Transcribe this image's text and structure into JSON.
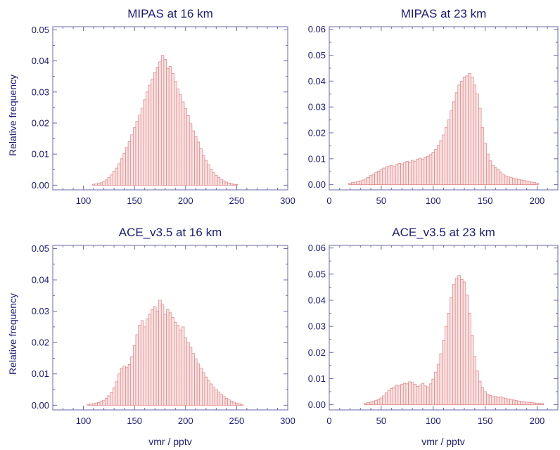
{
  "colors": {
    "text": "#1a1a7a",
    "axis": "#6a6aaa",
    "bar_fill": "#fbe3e3",
    "bar_edge": "#e07f7f"
  },
  "shared_labels": {
    "ylabel": "Relative  frequency",
    "xlabel": "vmr / pptv"
  },
  "chart_data": [
    {
      "type": "bar",
      "title": "MIPAS at 16 km",
      "xlim": [
        70,
        300
      ],
      "ylim": [
        -0.0015,
        0.051
      ],
      "xticks": [
        100,
        150,
        200,
        250,
        300
      ],
      "yticks": [
        0.0,
        0.01,
        0.02,
        0.03,
        0.04,
        0.05
      ],
      "yticks_labels": [
        "0.00",
        "0.01",
        "0.02",
        "0.03",
        "0.04",
        "0.05"
      ],
      "bin_width": 2.5,
      "x": [
        110.0,
        112.5,
        115.0,
        117.5,
        120.0,
        122.5,
        125.0,
        127.5,
        130.0,
        132.5,
        135.0,
        137.5,
        140.0,
        142.5,
        145.0,
        147.5,
        150.0,
        152.5,
        155.0,
        157.5,
        160.0,
        162.5,
        165.0,
        167.5,
        170.0,
        172.5,
        175.0,
        177.5,
        180.0,
        182.5,
        185.0,
        187.5,
        190.0,
        192.5,
        195.0,
        197.5,
        200.0,
        202.5,
        205.0,
        207.5,
        210.0,
        212.5,
        215.0,
        217.5,
        220.0,
        222.5,
        225.0,
        227.5,
        230.0,
        232.5,
        235.0,
        237.5,
        240.0,
        242.5,
        245.0,
        247.5,
        250.0
      ],
      "values": [
        0.0003,
        0.0004,
        0.0006,
        0.0008,
        0.0012,
        0.0017,
        0.0024,
        0.0033,
        0.0045,
        0.0055,
        0.0069,
        0.0085,
        0.0102,
        0.0121,
        0.014,
        0.0162,
        0.0185,
        0.0205,
        0.0226,
        0.0248,
        0.0275,
        0.03,
        0.0322,
        0.0341,
        0.0362,
        0.038,
        0.0397,
        0.0418,
        0.0405,
        0.0375,
        0.0382,
        0.036,
        0.0334,
        0.031,
        0.0291,
        0.0268,
        0.0247,
        0.0224,
        0.0198,
        0.0175,
        0.0157,
        0.0139,
        0.0117,
        0.0095,
        0.008,
        0.0066,
        0.0052,
        0.004,
        0.0032,
        0.0025,
        0.0019,
        0.0014,
        0.001,
        0.0007,
        0.0005,
        0.0003,
        0.0002
      ]
    },
    {
      "type": "bar",
      "title": "MIPAS at 23 km",
      "xlim": [
        0,
        220
      ],
      "ylim": [
        -0.002,
        0.061
      ],
      "xticks": [
        0,
        50,
        100,
        150,
        200
      ],
      "yticks": [
        0.0,
        0.01,
        0.02,
        0.03,
        0.04,
        0.05,
        0.06
      ],
      "yticks_labels": [
        "0.00",
        "0.01",
        "0.02",
        "0.03",
        "0.04",
        "0.05",
        "0.06"
      ],
      "bin_width": 2.5,
      "x": [
        20.0,
        22.5,
        25.0,
        27.5,
        30.0,
        32.5,
        35.0,
        37.5,
        40.0,
        42.5,
        45.0,
        47.5,
        50.0,
        52.5,
        55.0,
        57.5,
        60.0,
        62.5,
        65.0,
        67.5,
        70.0,
        72.5,
        75.0,
        77.5,
        80.0,
        82.5,
        85.0,
        87.5,
        90.0,
        92.5,
        95.0,
        97.5,
        100.0,
        102.5,
        105.0,
        107.5,
        110.0,
        112.5,
        115.0,
        117.5,
        120.0,
        122.5,
        125.0,
        127.5,
        130.0,
        132.5,
        135.0,
        137.5,
        140.0,
        142.5,
        145.0,
        147.5,
        150.0,
        152.5,
        155.0,
        157.5,
        160.0,
        162.5,
        165.0,
        167.5,
        170.0,
        172.5,
        175.0,
        177.5,
        180.0,
        182.5,
        185.0,
        187.5,
        190.0,
        192.5,
        195.0,
        197.5,
        200.0
      ],
      "values": [
        0.0006,
        0.0008,
        0.001,
        0.0012,
        0.0015,
        0.0018,
        0.0022,
        0.0028,
        0.0035,
        0.004,
        0.0046,
        0.0052,
        0.0058,
        0.0064,
        0.0068,
        0.0072,
        0.0074,
        0.007,
        0.0078,
        0.0082,
        0.008,
        0.0086,
        0.009,
        0.0085,
        0.0094,
        0.009,
        0.0098,
        0.0102,
        0.0098,
        0.0106,
        0.011,
        0.0116,
        0.0125,
        0.0136,
        0.0152,
        0.017,
        0.0192,
        0.022,
        0.025,
        0.0285,
        0.032,
        0.0355,
        0.0385,
        0.04,
        0.0415,
        0.042,
        0.043,
        0.0415,
        0.0385,
        0.035,
        0.0295,
        0.022,
        0.016,
        0.0118,
        0.0092,
        0.0075,
        0.0065,
        0.006,
        0.0048,
        0.004,
        0.0034,
        0.003,
        0.0027,
        0.0024,
        0.0022,
        0.002,
        0.0018,
        0.0016,
        0.0014,
        0.0012,
        0.001,
        0.0008,
        0.0006
      ]
    },
    {
      "type": "bar",
      "title": "ACE_v3.5 at 16 km",
      "xlim": [
        70,
        300
      ],
      "ylim": [
        -0.0015,
        0.051
      ],
      "xticks": [
        100,
        150,
        200,
        250,
        300
      ],
      "yticks": [
        0.0,
        0.01,
        0.02,
        0.03,
        0.04,
        0.05
      ],
      "yticks_labels": [
        "0.00",
        "0.01",
        "0.02",
        "0.03",
        "0.04",
        "0.05"
      ],
      "bin_width": 2.5,
      "x": [
        105.0,
        107.5,
        110.0,
        112.5,
        115.0,
        117.5,
        120.0,
        122.5,
        125.0,
        127.5,
        130.0,
        132.5,
        135.0,
        137.5,
        140.0,
        142.5,
        145.0,
        147.5,
        150.0,
        152.5,
        155.0,
        157.5,
        160.0,
        162.5,
        165.0,
        167.5,
        170.0,
        172.5,
        175.0,
        177.5,
        180.0,
        182.5,
        185.0,
        187.5,
        190.0,
        192.5,
        195.0,
        197.5,
        200.0,
        202.5,
        205.0,
        207.5,
        210.0,
        212.5,
        215.0,
        217.5,
        220.0,
        222.5,
        225.0,
        227.5,
        230.0,
        232.5,
        235.0,
        237.5,
        240.0,
        242.5,
        245.0,
        247.5,
        250.0,
        252.5,
        255.0
      ],
      "values": [
        0.0003,
        0.0004,
        0.0005,
        0.0007,
        0.0009,
        0.0012,
        0.0016,
        0.0022,
        0.003,
        0.004,
        0.0055,
        0.0075,
        0.01,
        0.0118,
        0.0125,
        0.012,
        0.013,
        0.0155,
        0.019,
        0.0225,
        0.0255,
        0.027,
        0.025,
        0.0275,
        0.029,
        0.0305,
        0.0315,
        0.03,
        0.0335,
        0.032,
        0.029,
        0.0305,
        0.0295,
        0.028,
        0.0265,
        0.0255,
        0.024,
        0.025,
        0.0215,
        0.02,
        0.0185,
        0.0165,
        0.0148,
        0.0132,
        0.0118,
        0.0104,
        0.009,
        0.0078,
        0.0068,
        0.0058,
        0.005,
        0.0042,
        0.0035,
        0.0028,
        0.0022,
        0.0017,
        0.0013,
        0.001,
        0.0007,
        0.0005,
        0.0003
      ]
    },
    {
      "type": "bar",
      "title": "ACE_v3.5 at 23 km",
      "xlim": [
        0,
        220
      ],
      "ylim": [
        -0.002,
        0.061
      ],
      "xticks": [
        0,
        50,
        100,
        150,
        200
      ],
      "yticks": [
        0.0,
        0.01,
        0.02,
        0.03,
        0.04,
        0.05,
        0.06
      ],
      "yticks_labels": [
        "0.00",
        "0.01",
        "0.02",
        "0.03",
        "0.04",
        "0.05",
        "0.06"
      ],
      "bin_width": 2.5,
      "x": [
        35.0,
        37.5,
        40.0,
        42.5,
        45.0,
        47.5,
        50.0,
        52.5,
        55.0,
        57.5,
        60.0,
        62.5,
        65.0,
        67.5,
        70.0,
        72.5,
        75.0,
        77.5,
        80.0,
        82.5,
        85.0,
        87.5,
        90.0,
        92.5,
        95.0,
        97.5,
        100.0,
        102.5,
        105.0,
        107.5,
        110.0,
        112.5,
        115.0,
        117.5,
        120.0,
        122.5,
        125.0,
        127.5,
        130.0,
        132.5,
        135.0,
        137.5,
        140.0,
        142.5,
        145.0,
        147.5,
        150.0,
        152.5,
        155.0,
        157.5,
        160.0,
        162.5,
        165.0,
        167.5,
        170.0,
        172.5,
        175.0,
        177.5,
        180.0,
        182.5,
        185.0,
        187.5,
        190.0,
        192.5,
        195.0,
        197.5,
        200.0,
        202.5,
        205.0
      ],
      "values": [
        0.0006,
        0.0008,
        0.001,
        0.0013,
        0.0016,
        0.002,
        0.0026,
        0.0034,
        0.0045,
        0.0055,
        0.0062,
        0.0068,
        0.0075,
        0.0072,
        0.0078,
        0.0082,
        0.008,
        0.0088,
        0.0085,
        0.0078,
        0.007,
        0.0075,
        0.0082,
        0.0072,
        0.0068,
        0.008,
        0.0098,
        0.0125,
        0.0155,
        0.0195,
        0.0245,
        0.03,
        0.035,
        0.041,
        0.046,
        0.0485,
        0.0495,
        0.048,
        0.047,
        0.042,
        0.035,
        0.0265,
        0.0185,
        0.013,
        0.009,
        0.0065,
        0.005,
        0.004,
        0.0035,
        0.003,
        0.0032,
        0.0028,
        0.003,
        0.0026,
        0.0024,
        0.0022,
        0.002,
        0.0018,
        0.0016,
        0.0014,
        0.0012,
        0.0011,
        0.001,
        0.0009,
        0.0008,
        0.0007,
        0.0006,
        0.0005,
        0.0004
      ]
    }
  ]
}
